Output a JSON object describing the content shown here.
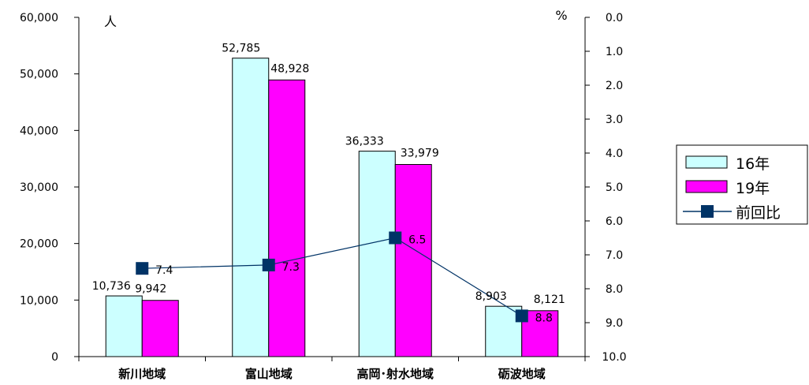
{
  "chart_data": {
    "type": "bar",
    "categories": [
      "新川地域",
      "富山地域",
      "高岡･射水地域",
      "砺波地域"
    ],
    "series": [
      {
        "name": "16年",
        "kind": "bar",
        "axis": "left",
        "color": "#ccffff",
        "values": [
          10736,
          52785,
          36333,
          8903
        ]
      },
      {
        "name": "19年",
        "kind": "bar",
        "axis": "left",
        "color": "#ff00ff",
        "values": [
          9942,
          48928,
          33979,
          8121
        ]
      },
      {
        "name": "前回比",
        "kind": "line",
        "axis": "right",
        "color": "#003366",
        "values": [
          7.4,
          7.3,
          6.5,
          8.8
        ]
      }
    ],
    "bar_labels": [
      [
        "10,736",
        "52,785",
        "36,333",
        "8,903"
      ],
      [
        "9,942",
        "48,928",
        "33,979",
        "8,121"
      ]
    ],
    "line_labels": [
      "7.4",
      "7.3",
      "6.5",
      "8.8"
    ],
    "y_left": {
      "unit": "人",
      "ylim": [
        0,
        60000
      ],
      "ticks": [
        0,
        10000,
        20000,
        30000,
        40000,
        50000,
        60000
      ],
      "tick_labels": [
        "0",
        "10,000",
        "20,000",
        "30,000",
        "40,000",
        "50,000",
        "60,000"
      ]
    },
    "y_right": {
      "unit": "%",
      "ylim": [
        0,
        10
      ],
      "inverted": true,
      "ticks": [
        0,
        1,
        2,
        3,
        4,
        5,
        6,
        7,
        8,
        9,
        10
      ],
      "tick_labels": [
        "0.0",
        "1.0",
        "2.0",
        "3.0",
        "4.0",
        "5.0",
        "6.0",
        "7.0",
        "8.0",
        "9.0",
        "10.0"
      ]
    },
    "legend": {
      "placement": "right",
      "entries": [
        "16年",
        "19年",
        "前回比"
      ]
    },
    "grid": false,
    "colors": {
      "axis": "#000000",
      "bar_stroke": "#000000"
    }
  }
}
